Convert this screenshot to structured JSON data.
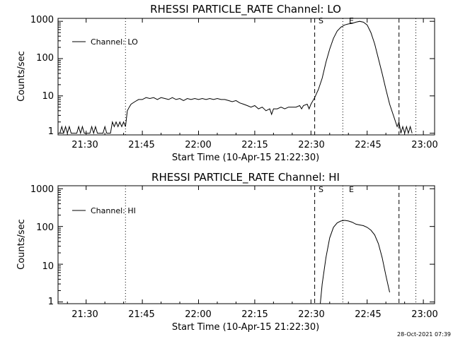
{
  "footer": {
    "timestamp": "28-Oct-2021 07:39"
  },
  "chart_data": [
    {
      "type": "line",
      "title": "RHESSI PARTICLE_RATE Channel: LO",
      "xlabel": "Start Time (10-Apr-15 21:22:30)",
      "ylabel": "Counts/sec",
      "y_scale": "log",
      "ylim": [
        0.9,
        1200
      ],
      "xlim": [
        "21:22:30",
        "23:03:00"
      ],
      "x_tick_labels": [
        "21:30",
        "21:45",
        "22:00",
        "22:15",
        "22:30",
        "22:45",
        "23:00"
      ],
      "y_tick_labels": [
        "1",
        "10",
        "100",
        "1000"
      ],
      "grid": false,
      "legend": {
        "position": "top-left",
        "entries": [
          "Channel: LO"
        ]
      },
      "markers": [
        {
          "label": "S",
          "time": "22:31:00",
          "style": "dashed"
        },
        {
          "label": "E",
          "time": "22:38:30",
          "style": "dotted"
        }
      ],
      "vertical_lines": [
        {
          "time": "21:40:30",
          "style": "dotted"
        },
        {
          "time": "22:53:30",
          "style": "dashed"
        },
        {
          "time": "22:58:00",
          "style": "dotted"
        }
      ],
      "series": [
        {
          "name": "Channel: LO",
          "points": [
            [
              "21:23:00",
              1
            ],
            [
              "21:23:30",
              1.5
            ],
            [
              "21:24:00",
              1
            ],
            [
              "21:24:30",
              1.5
            ],
            [
              "21:25:00",
              1
            ],
            [
              "21:25:30",
              1.5
            ],
            [
              "21:26:00",
              1
            ],
            [
              "21:27:30",
              1
            ],
            [
              "21:28:00",
              1.5
            ],
            [
              "21:28:30",
              1
            ],
            [
              "21:29:00",
              1.5
            ],
            [
              "21:29:30",
              1
            ],
            [
              "21:31:00",
              1
            ],
            [
              "21:31:30",
              1.5
            ],
            [
              "21:32:00",
              1
            ],
            [
              "21:32:30",
              1.5
            ],
            [
              "21:33:00",
              1
            ],
            [
              "21:34:30",
              1
            ],
            [
              "21:35:00",
              1.5
            ],
            [
              "21:35:30",
              1
            ],
            [
              "21:36:30",
              1
            ],
            [
              "21:37:00",
              2
            ],
            [
              "21:37:30",
              1.5
            ],
            [
              "21:38:00",
              2
            ],
            [
              "21:38:30",
              1.5
            ],
            [
              "21:39:00",
              2
            ],
            [
              "21:39:30",
              1.5
            ],
            [
              "21:40:00",
              2
            ],
            [
              "21:40:30",
              1.5
            ],
            [
              "21:41:00",
              4
            ],
            [
              "21:41:30",
              5
            ],
            [
              "21:42:00",
              6
            ],
            [
              "21:43:00",
              7
            ],
            [
              "21:44:00",
              8
            ],
            [
              "21:45:00",
              8
            ],
            [
              "21:46:00",
              9
            ],
            [
              "21:47:00",
              8.5
            ],
            [
              "21:48:00",
              9
            ],
            [
              "21:49:00",
              8
            ],
            [
              "21:50:00",
              9
            ],
            [
              "21:51:00",
              8.5
            ],
            [
              "21:52:00",
              8
            ],
            [
              "21:53:00",
              9
            ],
            [
              "21:54:00",
              8
            ],
            [
              "21:55:00",
              8.5
            ],
            [
              "21:56:00",
              7.5
            ],
            [
              "21:57:00",
              8.5
            ],
            [
              "21:58:00",
              8
            ],
            [
              "21:59:00",
              8.5
            ],
            [
              "22:00:00",
              8
            ],
            [
              "22:01:00",
              8.5
            ],
            [
              "22:02:00",
              8
            ],
            [
              "22:03:00",
              8.5
            ],
            [
              "22:04:00",
              8
            ],
            [
              "22:05:00",
              8.5
            ],
            [
              "22:06:00",
              8
            ],
            [
              "22:07:00",
              8
            ],
            [
              "22:08:00",
              7.5
            ],
            [
              "22:09:00",
              7
            ],
            [
              "22:10:00",
              7.5
            ],
            [
              "22:11:00",
              6.5
            ],
            [
              "22:12:00",
              6
            ],
            [
              "22:13:00",
              5.5
            ],
            [
              "22:14:00",
              5
            ],
            [
              "22:15:00",
              5.5
            ],
            [
              "22:16:00",
              4.5
            ],
            [
              "22:17:00",
              5
            ],
            [
              "22:18:00",
              4
            ],
            [
              "22:19:00",
              4.5
            ],
            [
              "22:19:30",
              3.2
            ],
            [
              "22:20:00",
              4.5
            ],
            [
              "22:21:00",
              4.5
            ],
            [
              "22:22:00",
              5
            ],
            [
              "22:23:00",
              4.5
            ],
            [
              "22:24:00",
              5
            ],
            [
              "22:25:00",
              5
            ],
            [
              "22:26:00",
              5
            ],
            [
              "22:27:00",
              5.5
            ],
            [
              "22:27:30",
              4.5
            ],
            [
              "22:28:00",
              5.5
            ],
            [
              "22:29:00",
              6
            ],
            [
              "22:29:30",
              4.5
            ],
            [
              "22:30:00",
              6
            ],
            [
              "22:31:00",
              9
            ],
            [
              "22:32:00",
              15
            ],
            [
              "22:33:00",
              30
            ],
            [
              "22:34:00",
              80
            ],
            [
              "22:35:00",
              180
            ],
            [
              "22:36:00",
              350
            ],
            [
              "22:37:00",
              550
            ],
            [
              "22:38:00",
              700
            ],
            [
              "22:39:00",
              800
            ],
            [
              "22:40:00",
              850
            ],
            [
              "22:41:00",
              880
            ],
            [
              "22:42:00",
              950
            ],
            [
              "22:43:00",
              1000
            ],
            [
              "22:44:00",
              950
            ],
            [
              "22:45:00",
              800
            ],
            [
              "22:46:00",
              500
            ],
            [
              "22:47:00",
              250
            ],
            [
              "22:48:00",
              100
            ],
            [
              "22:49:00",
              40
            ],
            [
              "22:50:00",
              15
            ],
            [
              "22:51:00",
              6
            ],
            [
              "22:52:00",
              3
            ],
            [
              "22:53:00",
              1.5
            ],
            [
              "22:53:30",
              2
            ],
            [
              "22:54:00",
              1
            ],
            [
              "22:54:30",
              1.5
            ],
            [
              "22:55:00",
              1
            ],
            [
              "22:55:30",
              1.5
            ],
            [
              "22:56:00",
              1
            ],
            [
              "22:56:30",
              1.5
            ],
            [
              "22:57:00",
              1
            ]
          ]
        }
      ]
    },
    {
      "type": "line",
      "title": "RHESSI PARTICLE_RATE Channel: HI",
      "xlabel": "Start Time (10-Apr-15 21:22:30)",
      "ylabel": "Counts/sec",
      "y_scale": "log",
      "ylim": [
        0.9,
        1200
      ],
      "xlim": [
        "21:22:30",
        "23:03:00"
      ],
      "x_tick_labels": [
        "21:30",
        "21:45",
        "22:00",
        "22:15",
        "22:30",
        "22:45",
        "23:00"
      ],
      "y_tick_labels": [
        "1",
        "10",
        "100",
        "1000"
      ],
      "grid": false,
      "legend": {
        "position": "top-left",
        "entries": [
          "Channel: HI"
        ]
      },
      "markers": [
        {
          "label": "S",
          "time": "22:31:00",
          "style": "dashed"
        },
        {
          "label": "E",
          "time": "22:38:30",
          "style": "dotted"
        }
      ],
      "vertical_lines": [
        {
          "time": "21:40:30",
          "style": "dotted"
        },
        {
          "time": "22:53:30",
          "style": "dashed"
        },
        {
          "time": "22:58:00",
          "style": "dotted"
        }
      ],
      "series": [
        {
          "name": "Channel: HI",
          "points": [
            [
              "22:32:30",
              0.9
            ],
            [
              "22:33:00",
              3
            ],
            [
              "22:34:00",
              15
            ],
            [
              "22:35:00",
              50
            ],
            [
              "22:36:00",
              95
            ],
            [
              "22:37:00",
              125
            ],
            [
              "22:38:00",
              140
            ],
            [
              "22:39:00",
              145
            ],
            [
              "22:40:00",
              140
            ],
            [
              "22:41:00",
              130
            ],
            [
              "22:42:00",
              115
            ],
            [
              "22:43:00",
              110
            ],
            [
              "22:44:00",
              105
            ],
            [
              "22:45:00",
              95
            ],
            [
              "22:46:00",
              80
            ],
            [
              "22:47:00",
              60
            ],
            [
              "22:48:00",
              35
            ],
            [
              "22:49:00",
              15
            ],
            [
              "22:50:00",
              5
            ],
            [
              "22:51:00",
              1.8
            ]
          ]
        }
      ]
    }
  ]
}
